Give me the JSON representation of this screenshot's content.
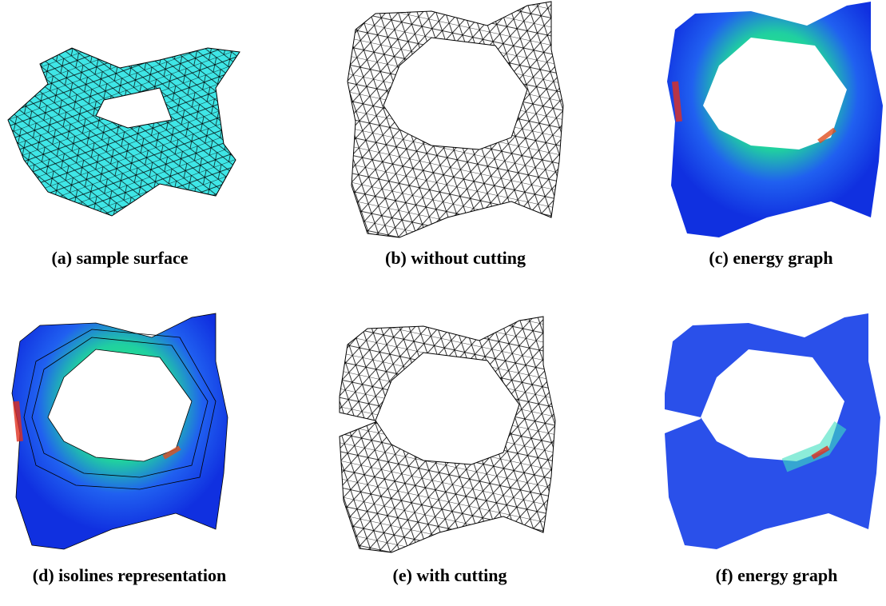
{
  "figure": {
    "panels": [
      {
        "caption": "(a) sample surface"
      },
      {
        "caption": "(b) without cutting"
      },
      {
        "caption": "(c) energy graph"
      },
      {
        "caption": "(d) isolines representation"
      },
      {
        "caption": "(e) with cutting"
      },
      {
        "caption": "(f) energy graph"
      }
    ]
  }
}
